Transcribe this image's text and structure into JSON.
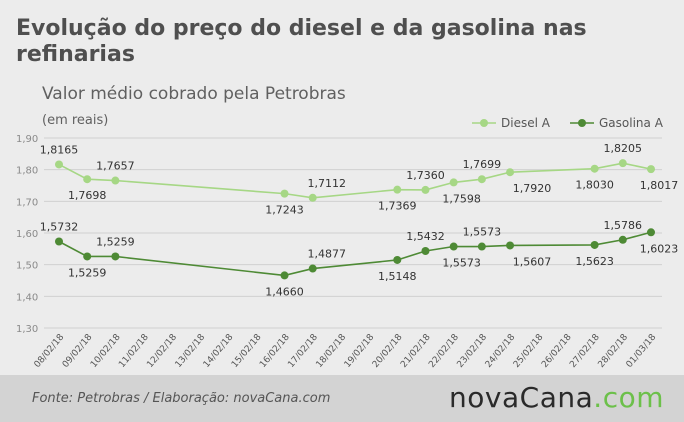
{
  "header": {
    "title": "Evolução do preço do diesel e da gasolina nas refinarias",
    "subtitle": "Valor médio cobrado pela Petrobras",
    "unit": "(em reais)"
  },
  "footer": {
    "source": "Fonte:  Petrobras  / Elaboração:  novaCana.com",
    "logo_name": "nova",
    "logo_cana": "Cana",
    "logo_dot": ".",
    "logo_com": "com"
  },
  "colors": {
    "diesel": "#a6d785",
    "gasolina": "#4e8a35",
    "grid": "#d0d0d0",
    "text": "#555555"
  },
  "chart_data": {
    "type": "line",
    "categories": [
      "08/02/18",
      "09/02/18",
      "10/02/18",
      "11/02/18",
      "12/02/18",
      "13/02/18",
      "14/02/18",
      "15/02/18",
      "16/02/18",
      "17/02/18",
      "18/02/18",
      "19/02/18",
      "20/02/18",
      "21/02/18",
      "22/02/18",
      "23/02/18",
      "24/02/18",
      "25/02/18",
      "26/02/18",
      "27/02/18",
      "28/02/18",
      "01/03/18"
    ],
    "ylim": [
      1.3,
      1.9
    ],
    "yticks": [
      "1,30",
      "1,40",
      "1,50",
      "1,60",
      "1,70",
      "1,80",
      "1,90"
    ],
    "legend_position": "top-right",
    "series": [
      {
        "name": "Diesel A",
        "values": [
          1.8165,
          1.7698,
          1.7657,
          null,
          null,
          null,
          null,
          null,
          1.7243,
          1.7112,
          null,
          null,
          1.7369,
          1.736,
          1.7598,
          1.7699,
          1.792,
          null,
          null,
          1.803,
          1.8205,
          1.8017
        ],
        "labels": [
          "1,8165",
          "1,7698",
          "1,7657",
          null,
          null,
          null,
          null,
          null,
          "1,7243",
          "1,7112",
          null,
          null,
          "1,7369",
          "1,7360",
          "1,7598",
          "1,7699",
          "1,7920",
          null,
          null,
          "1,8030",
          "1,8205",
          "1,8017"
        ]
      },
      {
        "name": "Gasolina A",
        "values": [
          1.5732,
          1.5259,
          1.5259,
          null,
          null,
          null,
          null,
          null,
          1.466,
          1.4877,
          null,
          null,
          1.5148,
          1.5432,
          1.5573,
          1.5573,
          1.5607,
          null,
          null,
          1.5623,
          1.5786,
          1.6023
        ],
        "labels": [
          "1,5732",
          "1,5259",
          "1,5259",
          null,
          null,
          null,
          null,
          null,
          "1,4660",
          "1,4877",
          null,
          null,
          "1,5148",
          "1,5432",
          "1,5573",
          "1,5573",
          "1,5607",
          null,
          null,
          "1,5623",
          "1,5786",
          "1,6023"
        ]
      }
    ]
  }
}
